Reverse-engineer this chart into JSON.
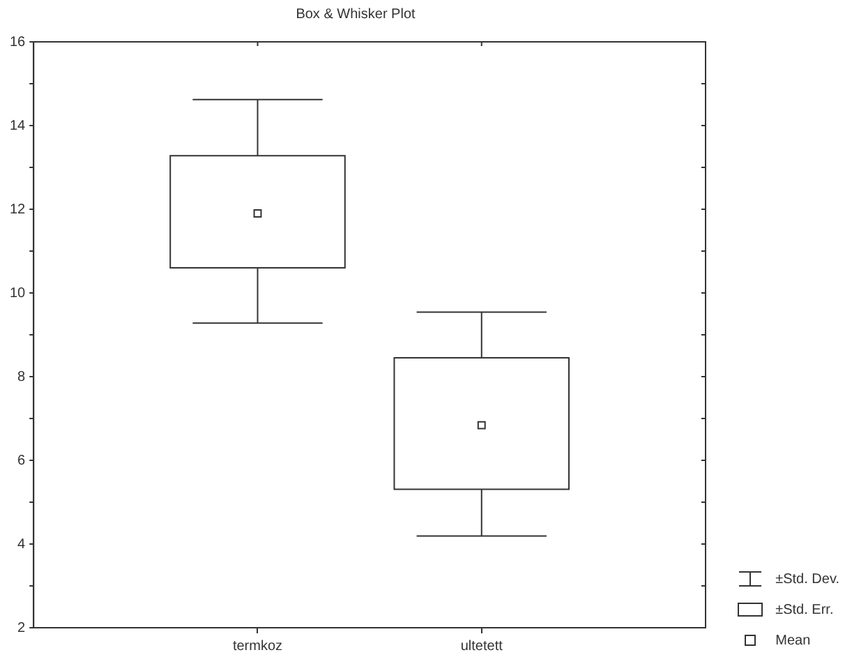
{
  "chart_data": {
    "type": "box",
    "title": "Box & Whisker Plot",
    "categories": [
      "termkoz",
      "ultetett"
    ],
    "boxes": [
      {
        "low": 9.28,
        "q1": 10.6,
        "q3": 13.28,
        "high": 14.62,
        "mean": 11.9
      },
      {
        "low": 4.19,
        "q1": 5.31,
        "q3": 8.45,
        "high": 9.54,
        "mean": 6.84
      }
    ],
    "color": "#333333",
    "marker": "square",
    "ylim": [
      2,
      16
    ],
    "yticks": [
      2,
      {
        "value": 3,
        "label": null
      },
      4,
      {
        "value": 5,
        "label": null
      },
      6,
      {
        "value": 7,
        "label": null
      },
      8,
      {
        "value": 9,
        "label": null
      },
      10,
      {
        "value": 11,
        "label": null
      },
      12,
      {
        "value": 13,
        "label": null
      },
      14,
      {
        "value": 15,
        "label": null
      },
      16
    ],
    "annotations": [
      "±Std. Dev.",
      "±Std. Err.",
      "Mean"
    ]
  }
}
